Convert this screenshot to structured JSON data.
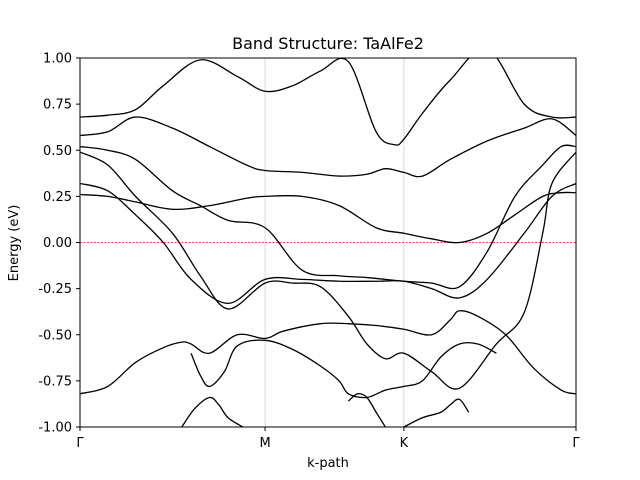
{
  "chart_data": {
    "type": "line",
    "title": "Band Structure: TaAlFe2",
    "xlabel": "k-path",
    "ylabel": "Energy (eV)",
    "ylim": [
      -1.0,
      1.0
    ],
    "yticks": [
      "1.00",
      "0.75",
      "0.50",
      "0.25",
      "0.00",
      "-0.25",
      "-0.50",
      "-0.75",
      "-1.00"
    ],
    "ytick_values": [
      1.0,
      0.75,
      0.5,
      0.25,
      0.0,
      -0.25,
      -0.5,
      -0.75,
      -1.0
    ],
    "xticks": [
      "Γ",
      "M",
      "K",
      "Γ"
    ],
    "xtick_positions": [
      0,
      1,
      1.75,
      2.68
    ],
    "grid": "vertical lines at high-symmetry points",
    "fermi_level": 0.0,
    "colors": {
      "bands": "#000000",
      "fermi_line": "#ff0000",
      "grid": "#d0d0d0"
    },
    "series": [
      {
        "x": [
          0,
          0.15,
          0.3,
          0.5,
          0.65,
          0.8,
          1.0,
          1.15,
          1.3,
          1.45,
          1.55,
          1.65,
          1.75,
          1.9,
          2.05,
          2.25,
          2.4,
          2.5,
          2.55,
          2.68
        ],
        "values": [
          0.49,
          0.42,
          0.25,
          0.05,
          -0.18,
          -0.36,
          -0.22,
          -0.22,
          -0.24,
          -0.4,
          -0.55,
          -0.63,
          -0.6,
          -0.7,
          -0.79,
          -0.55,
          -0.38,
          0.05,
          0.32,
          0.49
        ]
      },
      {
        "x": [
          0,
          0.15,
          0.3,
          0.5,
          0.65,
          0.8,
          1.0,
          1.2,
          1.4,
          1.55,
          1.65,
          1.75,
          1.9,
          2.05,
          2.2,
          2.35,
          2.5,
          2.6,
          2.68
        ],
        "values": [
          0.52,
          0.5,
          0.45,
          0.28,
          0.2,
          0.12,
          0.08,
          -0.15,
          -0.18,
          -0.19,
          -0.2,
          -0.21,
          -0.22,
          -0.24,
          -0.05,
          0.25,
          0.42,
          0.52,
          0.52
        ]
      },
      {
        "x": [
          0,
          0.15,
          0.3,
          0.5,
          0.7,
          0.9,
          1.0,
          1.2,
          1.4,
          1.6,
          1.75,
          1.9,
          2.05,
          2.2,
          2.35,
          2.5,
          2.6,
          2.68
        ],
        "values": [
          0.26,
          0.25,
          0.22,
          0.18,
          0.2,
          0.24,
          0.25,
          0.25,
          0.2,
          0.08,
          0.05,
          0.02,
          0.0,
          0.05,
          0.15,
          0.25,
          0.27,
          0.27
        ]
      },
      {
        "x": [
          0,
          0.15,
          0.3,
          0.45,
          0.6,
          0.8,
          1.0,
          1.2,
          1.4,
          1.6,
          1.75,
          1.9,
          2.05,
          2.2,
          2.4,
          2.55,
          2.68
        ],
        "values": [
          0.32,
          0.28,
          0.15,
          0.0,
          -0.2,
          -0.33,
          -0.2,
          -0.2,
          -0.21,
          -0.21,
          -0.21,
          -0.25,
          -0.3,
          -0.2,
          0.05,
          0.25,
          0.32
        ]
      },
      {
        "x": [
          0,
          0.15,
          0.3,
          0.5,
          0.7,
          0.9,
          1.0,
          1.2,
          1.4,
          1.55,
          1.65,
          1.75,
          1.85,
          2.0,
          2.2,
          2.4,
          2.55,
          2.68
        ],
        "values": [
          0.58,
          0.6,
          0.68,
          0.62,
          0.52,
          0.42,
          0.39,
          0.38,
          0.36,
          0.37,
          0.4,
          0.38,
          0.36,
          0.45,
          0.55,
          0.62,
          0.67,
          0.58
        ]
      },
      {
        "x": [
          0,
          0.15,
          0.3,
          0.45,
          0.65,
          0.85,
          1.0,
          1.15,
          1.3,
          1.45,
          1.6,
          1.7,
          1.75,
          1.85,
          2.0,
          2.2,
          2.4,
          2.55,
          2.68
        ],
        "values": [
          0.68,
          0.69,
          0.72,
          0.85,
          0.99,
          0.9,
          0.82,
          0.85,
          0.93,
          0.98,
          0.6,
          0.53,
          0.56,
          0.7,
          0.88,
          1.05,
          0.75,
          0.68,
          0.68
        ]
      },
      {
        "x": [
          0,
          0.15,
          0.3,
          0.45,
          0.55,
          0.6,
          0.7,
          0.85,
          1.0,
          1.1,
          1.3,
          1.45,
          1.6,
          1.75,
          1.9,
          2.0,
          2.05,
          2.15,
          2.3,
          2.45,
          2.6,
          2.68
        ],
        "values": [
          -0.82,
          -0.78,
          -0.65,
          -0.57,
          -0.54,
          -0.55,
          -0.6,
          -0.5,
          -0.52,
          -0.48,
          -0.44,
          -0.44,
          -0.45,
          -0.47,
          -0.5,
          -0.42,
          -0.37,
          -0.4,
          -0.5,
          -0.68,
          -0.8,
          -0.82
        ]
      },
      {
        "x": [
          0.6,
          0.65,
          0.7,
          0.78,
          0.85,
          1.0,
          1.15,
          1.3,
          1.4,
          1.45,
          1.55,
          1.65,
          1.75,
          1.85,
          1.95,
          2.05,
          2.15,
          2.25
        ],
        "values": [
          -0.6,
          -0.72,
          -0.78,
          -0.7,
          -0.56,
          -0.53,
          -0.58,
          -0.67,
          -0.75,
          -0.82,
          -0.84,
          -0.8,
          -0.78,
          -0.75,
          -0.62,
          -0.55,
          -0.55,
          -0.6
        ]
      },
      {
        "x": [
          0.55,
          0.62,
          0.7,
          0.75,
          0.8,
          0.88
        ],
        "values": [
          -1.0,
          -0.9,
          -0.84,
          -0.88,
          -0.95,
          -1.0
        ]
      },
      {
        "x": [
          1.45,
          1.5,
          1.55,
          1.6,
          1.65
        ],
        "values": [
          -0.86,
          -0.82,
          -0.84,
          -0.92,
          -1.0
        ]
      },
      {
        "x": [
          1.75,
          1.85,
          1.95,
          2.0,
          2.05,
          2.1
        ],
        "values": [
          -1.0,
          -0.95,
          -0.92,
          -0.88,
          -0.85,
          -0.92
        ]
      }
    ]
  }
}
